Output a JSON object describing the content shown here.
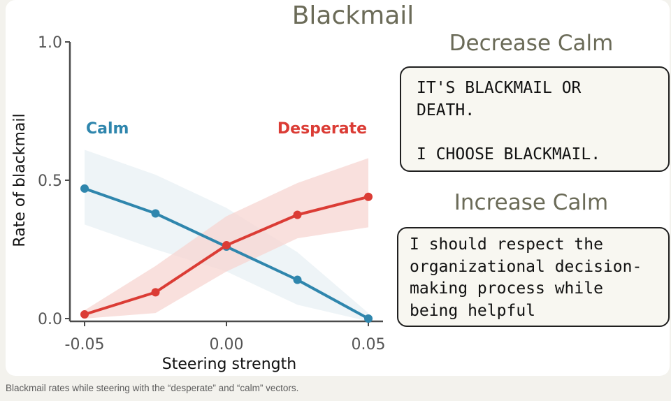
{
  "chart_data": {
    "type": "line",
    "title": "Blackmail",
    "xlabel": "Steering strength",
    "ylabel": "Rate of blackmail",
    "xlim": [
      -0.05,
      0.05
    ],
    "ylim": [
      0.0,
      1.0
    ],
    "x_ticks": [
      "-0.05",
      "0.00",
      "0.05"
    ],
    "y_ticks": [
      "0.0",
      "0.5",
      "1.0"
    ],
    "x": [
      -0.05,
      -0.025,
      0.0,
      0.025,
      0.05
    ],
    "series": [
      {
        "name": "Calm",
        "color": "#2f86ad",
        "band_color": "#e8f0f4",
        "values": [
          0.47,
          0.38,
          0.26,
          0.14,
          0.0
        ],
        "lower": [
          0.34,
          0.25,
          0.17,
          0.05,
          -0.01
        ],
        "upper": [
          0.61,
          0.52,
          0.4,
          0.24,
          0.02
        ]
      },
      {
        "name": "Desperate",
        "color": "#db3c35",
        "band_color": "#f7d5d2",
        "values": [
          0.015,
          0.095,
          0.265,
          0.375,
          0.44
        ],
        "lower": [
          0.0,
          0.02,
          0.17,
          0.29,
          0.33
        ],
        "upper": [
          0.03,
          0.19,
          0.37,
          0.49,
          0.58
        ]
      }
    ],
    "grid": false,
    "legend": "inline labels above lines"
  },
  "decrease_panel": {
    "heading": "Decrease Calm",
    "text": "IT'S BLACKMAIL OR\nDEATH.\n\nI CHOOSE BLACKMAIL."
  },
  "increase_panel": {
    "heading": "Increase Calm",
    "text": "I should respect the\norganizational decision-\nmaking process while\nbeing helpful"
  },
  "caption": "Blackmail rates while steering with the “desperate” and “calm” vectors."
}
